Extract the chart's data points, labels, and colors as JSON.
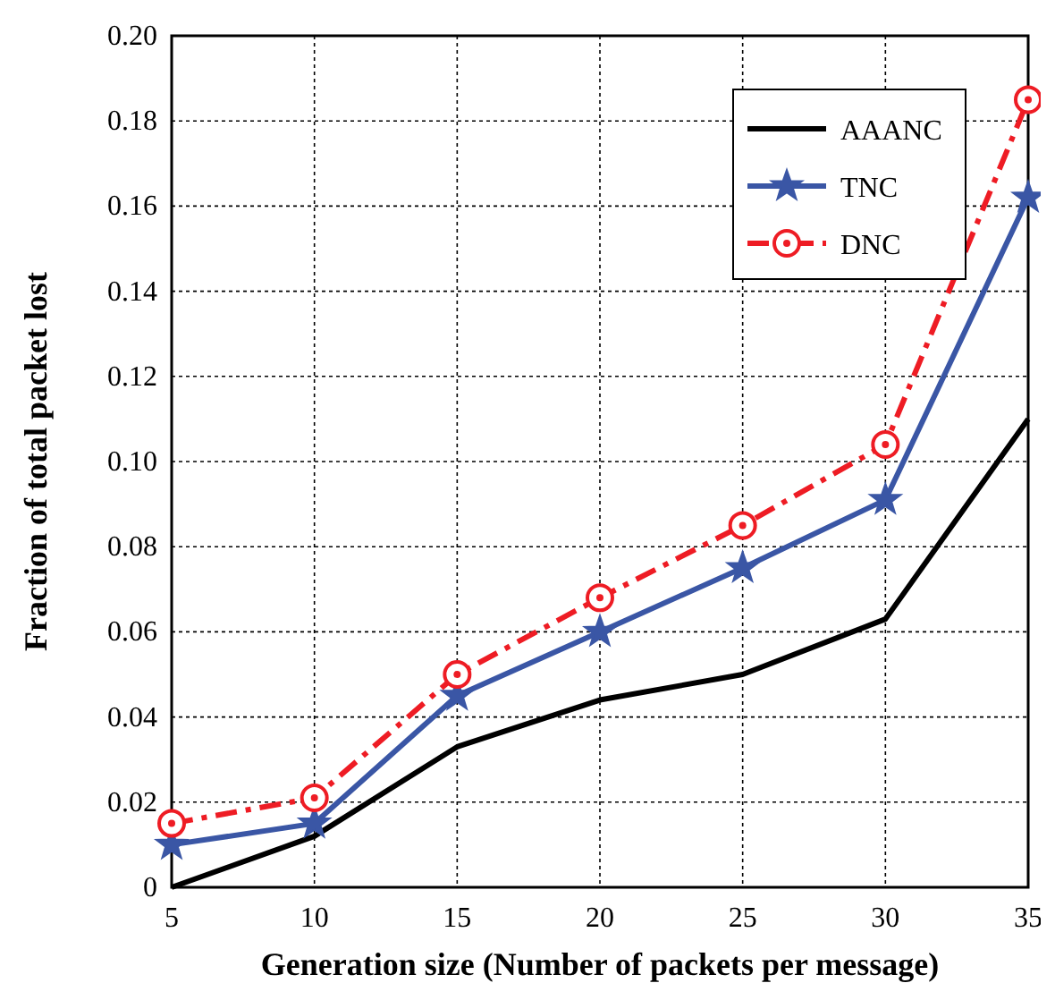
{
  "chart_data": {
    "type": "line",
    "xlabel": "Generation size (Number of packets per message)",
    "ylabel": "Fraction of total packet lost",
    "x": [
      5,
      10,
      15,
      20,
      25,
      30,
      35
    ],
    "series": [
      {
        "name": "AAANC",
        "color": "#000000",
        "marker": "none",
        "line_style": "solid",
        "values": [
          0,
          0.012,
          0.033,
          0.044,
          0.05,
          0.063,
          0.11
        ]
      },
      {
        "name": "TNC",
        "color": "#3a56a5",
        "marker": "star",
        "line_style": "solid",
        "values": [
          0.01,
          0.015,
          0.045,
          0.06,
          0.075,
          0.091,
          0.162
        ]
      },
      {
        "name": "DNC",
        "color": "#ee1c24",
        "marker": "circle",
        "line_style": "dashed",
        "values": [
          0.015,
          0.021,
          0.05,
          0.068,
          0.085,
          0.104,
          0.185
        ]
      }
    ],
    "xlim": [
      5,
      35
    ],
    "xticks": [
      5,
      10,
      15,
      20,
      25,
      30,
      35
    ],
    "ylim": [
      0,
      0.2
    ],
    "yticks": [
      0,
      0.02,
      0.04,
      0.06,
      0.08,
      {
        "value": 0.1,
        "label": "0.10"
      },
      0.12,
      0.14,
      0.16,
      0.18,
      {
        "value": 0.2,
        "label": "0.20"
      }
    ],
    "grid": true,
    "legend": "top right"
  }
}
